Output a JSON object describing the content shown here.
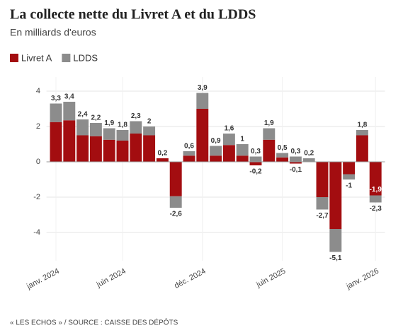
{
  "chart_data": {
    "type": "stacked_bar",
    "title": "La collecte nette du Livret A et du LDDS",
    "subtitle": "En milliards d'euros",
    "source": "« LES ECHOS » / SOURCE : CAISSE DES DÉPÔTS",
    "categories": [
      "janv. 2024",
      null,
      null,
      null,
      null,
      "juin 2024",
      null,
      null,
      null,
      null,
      null,
      "déc. 2024",
      null,
      null,
      null,
      null,
      null,
      "juin 2025",
      null,
      null,
      null,
      null,
      null,
      null,
      "janv. 2026"
    ],
    "series": [
      {
        "name": "Livret A",
        "color": "#a30d10",
        "values": [
          2.25,
          2.35,
          1.5,
          1.45,
          1.25,
          1.2,
          1.6,
          1.5,
          0.2,
          -1.95,
          0.35,
          3.0,
          0.35,
          0.95,
          0.35,
          -0.2,
          1.25,
          0.25,
          -0.1,
          0,
          -2.0,
          -3.8,
          -0.7,
          1.5,
          -1.9
        ],
        "value_labels": [
          null,
          null,
          null,
          null,
          null,
          null,
          null,
          null,
          null,
          null,
          null,
          null,
          null,
          null,
          null,
          null,
          null,
          null,
          null,
          null,
          null,
          null,
          null,
          null,
          "-1,9"
        ]
      },
      {
        "name": "LDDS",
        "color": "#8c8c8c",
        "values": [
          1.05,
          1.05,
          0.9,
          0.75,
          0.65,
          0.6,
          0.7,
          0.5,
          0,
          -0.65,
          0.25,
          0.9,
          0.55,
          0.65,
          0.65,
          0.3,
          0.65,
          0.25,
          0.3,
          0.2,
          -0.7,
          -1.3,
          -0.3,
          0.3,
          -0.4
        ]
      }
    ],
    "positive_total_labels": [
      "3,3",
      "3,4",
      "2,4",
      "2,2",
      "1,9",
      "1,8",
      "2,3",
      "2",
      "0,2",
      null,
      "0,6",
      "3,9",
      "0,9",
      "1,6",
      "1",
      "0,3",
      "1,9",
      "0,5",
      "0,3",
      "0,2",
      null,
      null,
      null,
      "1,8",
      null
    ],
    "negative_total_labels": [
      null,
      null,
      null,
      null,
      null,
      null,
      null,
      null,
      null,
      "-2,6",
      null,
      null,
      null,
      null,
      null,
      "-0,2",
      null,
      null,
      "-0,1",
      null,
      "-2,7",
      "-5,1",
      "-1",
      null,
      "-2,3"
    ],
    "ylim": [
      -5.6,
      4.8
    ],
    "yticks": [
      -4,
      -2,
      0,
      2,
      4
    ],
    "grid": true,
    "legend": "top-left"
  }
}
